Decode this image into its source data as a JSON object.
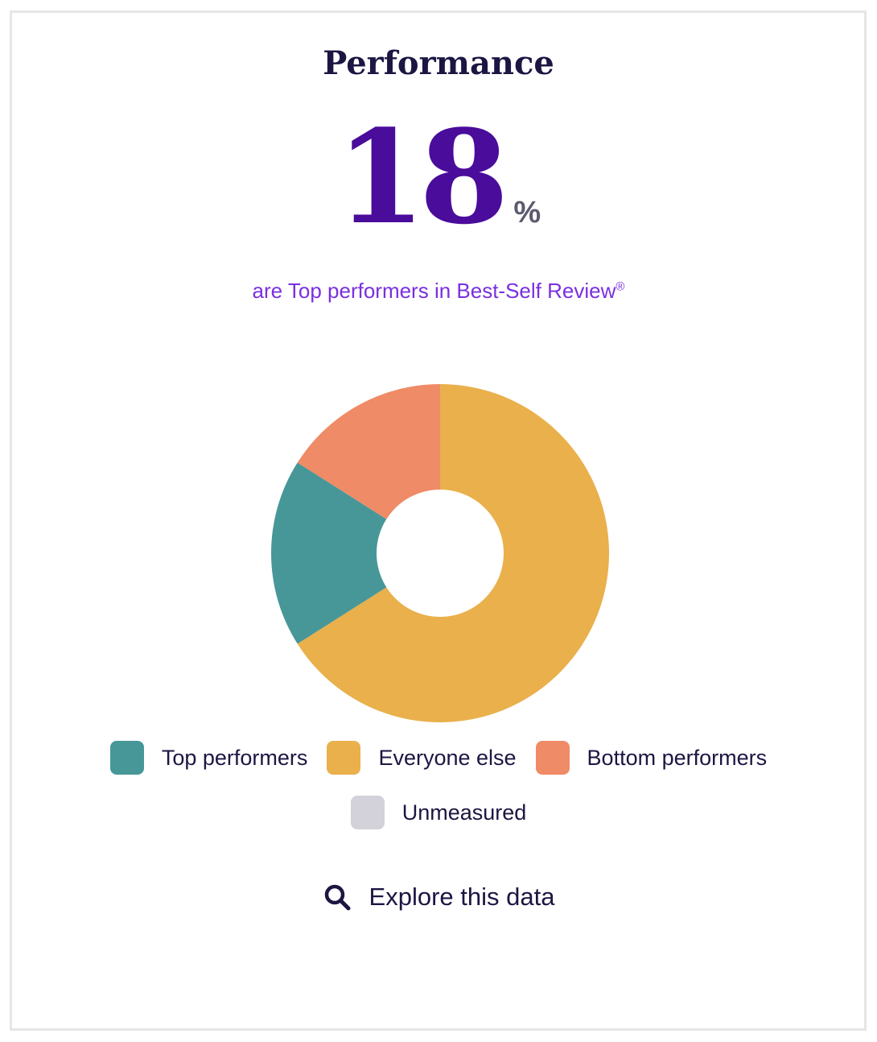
{
  "card": {
    "title": "Performance",
    "headline_value": "18",
    "headline_unit": "%",
    "subtitle": "are Top performers in Best-Self Review",
    "subtitle_mark": "®"
  },
  "chart_data": {
    "type": "pie",
    "donut": true,
    "title": "",
    "slices": [
      {
        "label": "Everyone else",
        "value": 66,
        "color": "#e9b04c"
      },
      {
        "label": "Top performers",
        "value": 18,
        "color": "#489798"
      },
      {
        "label": "Bottom performers",
        "value": 16,
        "color": "#ef8b66"
      },
      {
        "label": "Unmeasured",
        "value": 0,
        "color": "#d3d2da"
      }
    ]
  },
  "legend": {
    "items": [
      {
        "label": "Top performers",
        "color": "#489798"
      },
      {
        "label": "Everyone else",
        "color": "#e9b04c"
      },
      {
        "label": "Bottom performers",
        "color": "#ef8b66"
      },
      {
        "label": "Unmeasured",
        "color": "#d3d2da"
      }
    ]
  },
  "explore": {
    "icon": "search-icon",
    "label": "Explore this data"
  }
}
